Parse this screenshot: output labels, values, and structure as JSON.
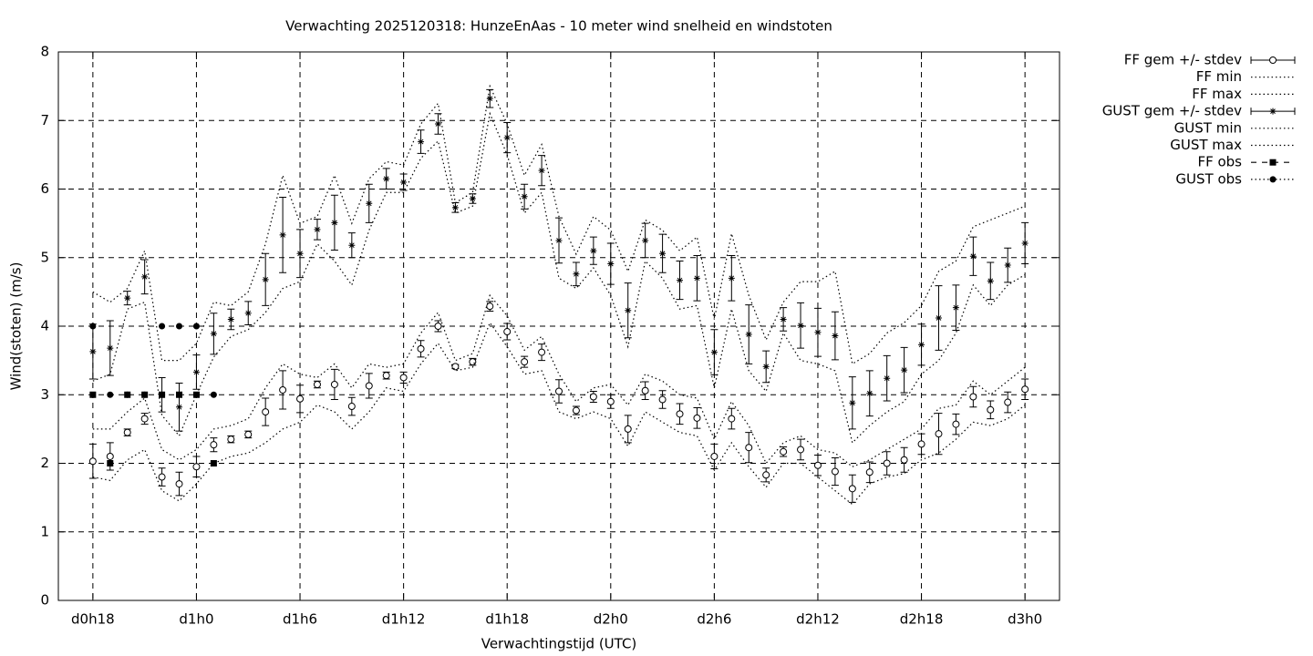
{
  "chart_data": {
    "type": "errorbar",
    "title": "Verwachting 2025120318: HunzeEnAas - 10 meter wind snelheid en windstoten",
    "x_label": "Verwachtingstijd (UTC)",
    "y_label": "Wind(stoten) (m/s)",
    "x": [
      18,
      19,
      20,
      21,
      22,
      23,
      24,
      25,
      26,
      27,
      28,
      29,
      30,
      31,
      32,
      33,
      34,
      35,
      36,
      37,
      38,
      39,
      40,
      41,
      42,
      43,
      44,
      45,
      46,
      47,
      48,
      49,
      50,
      51,
      52,
      53,
      54,
      55,
      56,
      57,
      58,
      59,
      60,
      61,
      62,
      63,
      64,
      65,
      66,
      67,
      68,
      69,
      70,
      71,
      72
    ],
    "xlim": [
      16,
      74
    ],
    "xticks": [
      {
        "value": 18,
        "label": "d0h18"
      },
      {
        "value": 24,
        "label": "d1h0"
      },
      {
        "value": 30,
        "label": "d1h6"
      },
      {
        "value": 36,
        "label": "d1h12"
      },
      {
        "value": 42,
        "label": "d1h18"
      },
      {
        "value": 48,
        "label": "d2h0"
      },
      {
        "value": 54,
        "label": "d2h6"
      },
      {
        "value": 60,
        "label": "d2h12"
      },
      {
        "value": 66,
        "label": "d2h18"
      },
      {
        "value": 72,
        "label": "d3h0"
      }
    ],
    "ylim": [
      0,
      8
    ],
    "yticks": [
      0,
      1,
      2,
      3,
      4,
      5,
      6,
      7,
      8
    ],
    "grid": true,
    "legend": "outside-right",
    "series": [
      {
        "name": "FF gem +/- stdev",
        "color": "#000000",
        "marker": "circle-open",
        "line": "none",
        "values": [
          2.03,
          2.1,
          2.45,
          2.65,
          1.8,
          1.7,
          1.95,
          2.27,
          2.35,
          2.42,
          2.75,
          3.07,
          2.94,
          3.15,
          3.15,
          2.83,
          3.13,
          3.28,
          3.25,
          3.67,
          4.0,
          3.41,
          3.48,
          4.29,
          3.92,
          3.48,
          3.62,
          3.05,
          2.77,
          2.97,
          2.9,
          2.5,
          3.06,
          2.93,
          2.72,
          2.66,
          2.1,
          2.65,
          2.23,
          1.83,
          2.17,
          2.2,
          1.97,
          1.88,
          1.63,
          1.87,
          2.0,
          2.05,
          2.28,
          2.43,
          2.57,
          2.97,
          2.78,
          2.89,
          3.08
        ],
        "errors": [
          0.25,
          0.2,
          0.05,
          0.08,
          0.13,
          0.17,
          0.15,
          0.1,
          0.05,
          0.05,
          0.2,
          0.28,
          0.2,
          0.05,
          0.22,
          0.13,
          0.18,
          0.05,
          0.08,
          0.12,
          0.08,
          0.03,
          0.05,
          0.07,
          0.12,
          0.08,
          0.12,
          0.17,
          0.06,
          0.08,
          0.1,
          0.2,
          0.13,
          0.13,
          0.15,
          0.15,
          0.18,
          0.15,
          0.22,
          0.1,
          0.07,
          0.15,
          0.15,
          0.2,
          0.2,
          0.15,
          0.17,
          0.18,
          0.15,
          0.3,
          0.15,
          0.15,
          0.13,
          0.15,
          0.15
        ]
      },
      {
        "name": "FF min",
        "color": "#000000",
        "marker": "none",
        "line": "dotted",
        "values": [
          1.8,
          1.75,
          2.05,
          2.2,
          1.6,
          1.45,
          1.7,
          2.0,
          2.1,
          2.15,
          2.3,
          2.5,
          2.6,
          2.85,
          2.75,
          2.5,
          2.75,
          3.1,
          3.05,
          3.45,
          3.75,
          3.35,
          3.4,
          4.05,
          3.7,
          3.3,
          3.35,
          2.75,
          2.65,
          2.75,
          2.65,
          2.25,
          2.75,
          2.6,
          2.45,
          2.4,
          1.9,
          2.3,
          1.95,
          1.65,
          2.0,
          2.0,
          1.8,
          1.6,
          1.4,
          1.7,
          1.8,
          1.85,
          2.05,
          2.15,
          2.35,
          2.6,
          2.55,
          2.65,
          2.85
        ]
      },
      {
        "name": "FF max",
        "color": "#000000",
        "marker": "none",
        "line": "dotted",
        "values": [
          2.5,
          2.5,
          2.75,
          2.95,
          2.2,
          2.05,
          2.2,
          2.5,
          2.55,
          2.65,
          3.1,
          3.45,
          3.3,
          3.25,
          3.45,
          3.1,
          3.45,
          3.4,
          3.45,
          3.9,
          4.2,
          3.5,
          3.6,
          4.45,
          4.15,
          3.65,
          3.85,
          3.3,
          2.9,
          3.1,
          3.15,
          2.85,
          3.3,
          3.2,
          3.0,
          2.95,
          2.35,
          2.9,
          2.55,
          2.0,
          2.3,
          2.4,
          2.2,
          2.15,
          1.95,
          2.05,
          2.2,
          2.35,
          2.5,
          2.8,
          2.85,
          3.2,
          3.0,
          3.2,
          3.4
        ]
      },
      {
        "name": "GUST gem +/- stdev",
        "color": "#000000",
        "marker": "asterisk",
        "line": "none",
        "values": [
          3.63,
          3.68,
          4.41,
          4.72,
          3.0,
          2.82,
          3.33,
          3.89,
          4.1,
          4.19,
          4.68,
          5.33,
          5.06,
          5.41,
          5.51,
          5.18,
          5.79,
          6.15,
          6.1,
          6.69,
          6.95,
          5.73,
          5.86,
          7.32,
          6.75,
          5.89,
          6.27,
          5.25,
          4.76,
          5.1,
          4.91,
          4.23,
          5.25,
          5.06,
          4.67,
          4.7,
          3.62,
          4.7,
          3.88,
          3.41,
          4.1,
          4.01,
          3.91,
          3.86,
          2.88,
          3.02,
          3.24,
          3.36,
          3.73,
          4.12,
          4.27,
          5.02,
          4.66,
          4.89,
          5.21
        ],
        "errors": [
          0.4,
          0.4,
          0.1,
          0.25,
          0.25,
          0.35,
          0.25,
          0.3,
          0.15,
          0.17,
          0.38,
          0.55,
          0.35,
          0.15,
          0.4,
          0.18,
          0.28,
          0.15,
          0.12,
          0.17,
          0.15,
          0.07,
          0.07,
          0.13,
          0.22,
          0.18,
          0.22,
          0.33,
          0.17,
          0.2,
          0.3,
          0.4,
          0.25,
          0.28,
          0.28,
          0.33,
          0.33,
          0.33,
          0.43,
          0.23,
          0.17,
          0.33,
          0.35,
          0.35,
          0.38,
          0.33,
          0.33,
          0.33,
          0.3,
          0.47,
          0.33,
          0.28,
          0.27,
          0.25,
          0.3
        ]
      },
      {
        "name": "GUST min",
        "color": "#000000",
        "marker": "none",
        "line": "dotted",
        "values": [
          3.2,
          3.3,
          4.25,
          4.35,
          2.7,
          2.4,
          3.0,
          3.55,
          3.85,
          3.95,
          4.2,
          4.55,
          4.65,
          5.2,
          4.95,
          4.6,
          5.4,
          5.95,
          5.95,
          6.45,
          6.7,
          5.65,
          5.75,
          7.1,
          6.5,
          5.65,
          5.95,
          4.7,
          4.55,
          4.85,
          4.45,
          3.7,
          4.95,
          4.7,
          4.25,
          4.3,
          3.1,
          4.25,
          3.35,
          3.05,
          3.9,
          3.5,
          3.45,
          3.35,
          2.3,
          2.55,
          2.75,
          2.9,
          3.3,
          3.5,
          3.9,
          4.6,
          4.3,
          4.6,
          4.75
        ]
      },
      {
        "name": "GUST max",
        "color": "#000000",
        "marker": "none",
        "line": "dotted",
        "values": [
          4.5,
          4.35,
          4.55,
          5.1,
          3.5,
          3.5,
          3.75,
          4.35,
          4.3,
          4.5,
          5.2,
          6.2,
          5.5,
          5.6,
          6.2,
          5.5,
          6.15,
          6.4,
          6.35,
          6.95,
          7.25,
          5.8,
          5.95,
          7.5,
          6.95,
          6.2,
          6.65,
          5.6,
          5.05,
          5.6,
          5.4,
          4.8,
          5.55,
          5.4,
          5.1,
          5.3,
          4.1,
          5.35,
          4.45,
          3.8,
          4.35,
          4.65,
          4.65,
          4.8,
          3.45,
          3.6,
          3.9,
          4.05,
          4.3,
          4.8,
          4.95,
          5.45,
          5.55,
          5.65,
          5.75
        ]
      },
      {
        "name": "FF obs",
        "color": "#000000",
        "marker": "square",
        "line": "dashed",
        "values": [
          3,
          2,
          3,
          3,
          3,
          3,
          3,
          2,
          null,
          null,
          null,
          null,
          null,
          null,
          null,
          null,
          null,
          null,
          null,
          null,
          null,
          null,
          null,
          null,
          null,
          null,
          null,
          null,
          null,
          null,
          null,
          null,
          null,
          null,
          null,
          null,
          null,
          null,
          null,
          null,
          null,
          null,
          null,
          null,
          null,
          null,
          null,
          null,
          null,
          null,
          null,
          null,
          null,
          null,
          null
        ]
      },
      {
        "name": "GUST obs",
        "color": "#000000",
        "marker": "circle",
        "line": "dotted",
        "values": [
          4,
          3,
          3,
          3,
          4,
          4,
          4,
          3,
          null,
          null,
          null,
          null,
          null,
          null,
          null,
          null,
          null,
          null,
          null,
          null,
          null,
          null,
          null,
          null,
          null,
          null,
          null,
          null,
          null,
          null,
          null,
          null,
          null,
          null,
          null,
          null,
          null,
          null,
          null,
          null,
          null,
          null,
          null,
          null,
          null,
          null,
          null,
          null,
          null,
          null,
          null,
          null,
          null,
          null,
          null
        ]
      }
    ]
  }
}
